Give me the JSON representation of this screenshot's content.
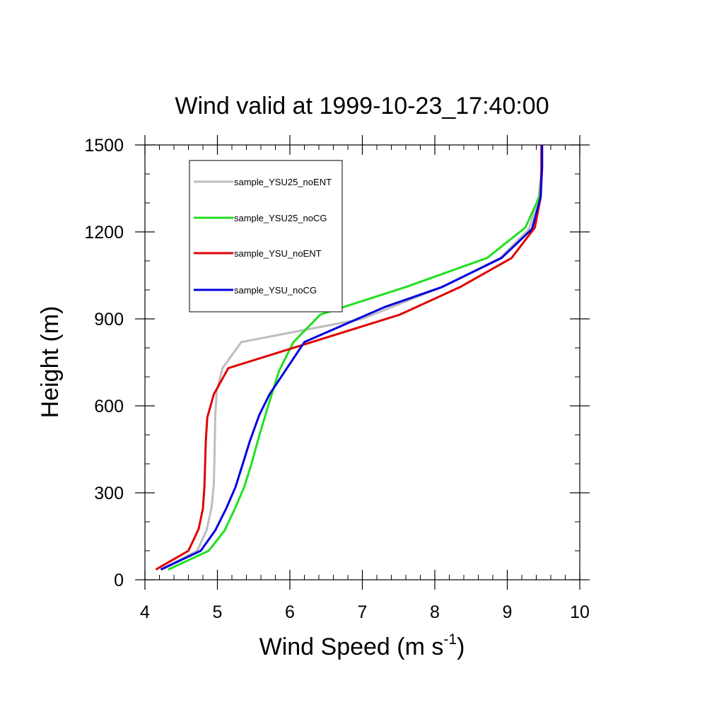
{
  "chart_data": {
    "type": "line",
    "title": "Wind valid at 1999-10-23_17:40:00",
    "xlabel": "Wind Speed (m s",
    "xlabel_sup": "-1",
    "xlabel_close": ")",
    "ylabel": "Height (m)",
    "xlim": [
      4,
      10
    ],
    "ylim": [
      0,
      1500
    ],
    "xticks": [
      4,
      5,
      6,
      7,
      8,
      9,
      10
    ],
    "yticks": [
      0,
      300,
      600,
      900,
      1200,
      1500
    ],
    "grid": false,
    "legend_position": "top-left",
    "series": [
      {
        "name": "sample_YSU25_noENT",
        "color": "#bdbdbd",
        "x": [
          4.22,
          4.72,
          4.85,
          4.92,
          4.95,
          4.96,
          4.97,
          4.99,
          5.07,
          5.33,
          7.0,
          8.1,
          8.9,
          9.3,
          9.43,
          9.48,
          9.48
        ],
        "y": [
          35,
          100,
          170,
          250,
          330,
          420,
          560,
          650,
          730,
          820,
          900,
          1010,
          1110,
          1210,
          1320,
          1420,
          1500
        ]
      },
      {
        "name": "sample_YSU25_noCG",
        "color": "#1fe01f",
        "x": [
          4.32,
          4.88,
          5.1,
          5.25,
          5.37,
          5.47,
          5.58,
          5.7,
          5.85,
          6.05,
          6.42,
          7.6,
          8.72,
          9.25,
          9.45,
          9.48,
          9.48
        ],
        "y": [
          35,
          100,
          170,
          250,
          320,
          400,
          500,
          600,
          720,
          820,
          915,
          1010,
          1110,
          1215,
          1325,
          1420,
          1500
        ]
      },
      {
        "name": "sample_YSU_noENT",
        "color": "#e00000",
        "x": [
          4.15,
          4.6,
          4.74,
          4.8,
          4.82,
          4.83,
          4.84,
          4.86,
          4.95,
          5.15,
          7.52,
          8.35,
          9.06,
          9.38,
          9.46,
          9.47,
          9.47
        ],
        "y": [
          35,
          100,
          175,
          245,
          320,
          400,
          480,
          560,
          640,
          730,
          915,
          1010,
          1110,
          1215,
          1320,
          1420,
          1500
        ]
      },
      {
        "name": "sample_YSU_noCG",
        "color": "#0000e0",
        "x": [
          4.22,
          4.77,
          4.97,
          5.12,
          5.25,
          5.35,
          5.45,
          5.58,
          5.72,
          6.2,
          7.3,
          8.1,
          8.92,
          9.34,
          9.46,
          9.48,
          9.48
        ],
        "y": [
          35,
          100,
          170,
          245,
          320,
          400,
          480,
          570,
          640,
          820,
          940,
          1010,
          1110,
          1210,
          1320,
          1420,
          1500
        ]
      }
    ]
  }
}
